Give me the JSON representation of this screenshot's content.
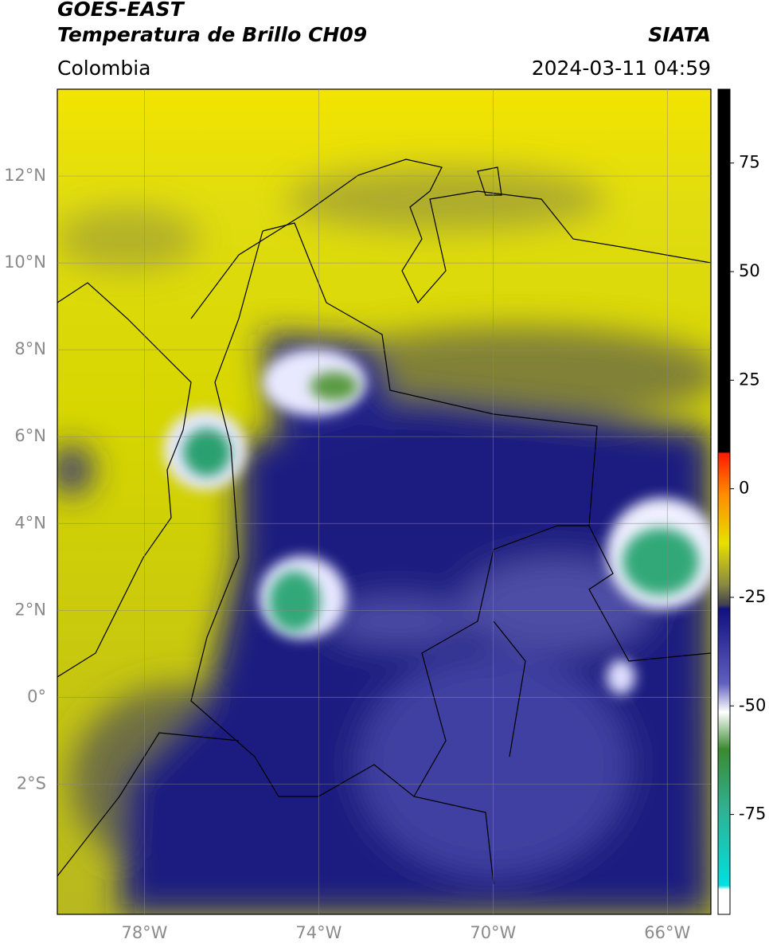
{
  "header": {
    "source": "GOES-EAST",
    "product": "Temperatura de Brillo CH09",
    "agency": "SIATA",
    "region": "Colombia",
    "datetime": "2024-03-11 04:59"
  },
  "map": {
    "lonlim": [
      -80,
      -65
    ],
    "latlim": [
      -5,
      14
    ],
    "lon_ticks": [
      {
        "value": -78,
        "label": "78°W"
      },
      {
        "value": -74,
        "label": "74°W"
      },
      {
        "value": -70,
        "label": "70°W"
      },
      {
        "value": -66,
        "label": "66°W"
      }
    ],
    "lat_ticks": [
      {
        "value": 12,
        "label": "12°N"
      },
      {
        "value": 10,
        "label": "10°N"
      },
      {
        "value": 8,
        "label": "8°N"
      },
      {
        "value": 6,
        "label": "6°N"
      },
      {
        "value": 4,
        "label": "4°N"
      },
      {
        "value": 2,
        "label": "2°N"
      },
      {
        "value": 0,
        "label": "0°"
      },
      {
        "value": -2,
        "label": "2°S"
      }
    ],
    "grid": true
  },
  "colorbar": {
    "lim": [
      -98,
      92
    ],
    "ticks": [
      75,
      50,
      25,
      0,
      -25,
      -50,
      -75
    ]
  }
}
